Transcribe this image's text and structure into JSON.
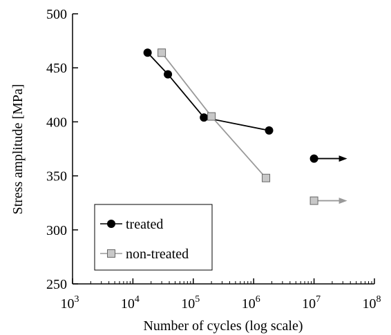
{
  "chart_data": {
    "type": "scatter",
    "xlabel": "Number of cycles (log scale)",
    "ylabel": "Stress amplitude [MPa]",
    "x_scale": "log",
    "xlim": [
      1000,
      100000000
    ],
    "ylim": [
      250,
      500
    ],
    "x_ticks": [
      {
        "value": 1000,
        "base": "10",
        "exp": "3"
      },
      {
        "value": 10000,
        "base": "10",
        "exp": "4"
      },
      {
        "value": 100000,
        "base": "10",
        "exp": "5"
      },
      {
        "value": 1000000,
        "base": "10",
        "exp": "6"
      },
      {
        "value": 10000000,
        "base": "10",
        "exp": "7"
      },
      {
        "value": 100000000,
        "base": "10",
        "exp": "8"
      }
    ],
    "y_ticks": [
      {
        "value": 250,
        "label": "250"
      },
      {
        "value": 300,
        "label": "300"
      },
      {
        "value": 350,
        "label": "350"
      },
      {
        "value": 400,
        "label": "400"
      },
      {
        "value": 450,
        "label": "450"
      },
      {
        "value": 500,
        "label": "500"
      }
    ],
    "grid": false,
    "legend_position": "bottom-left",
    "series": [
      {
        "name": "treated",
        "marker": "circle",
        "color": "#000000",
        "points": [
          [
            17500,
            464
          ],
          [
            38000,
            444
          ],
          [
            150000,
            404
          ],
          [
            1800000,
            392
          ]
        ],
        "runout": [
          [
            10000000,
            366
          ]
        ]
      },
      {
        "name": "non-treated",
        "marker": "square",
        "color": "#999999",
        "fill": "#c8c8c8",
        "points": [
          [
            30000,
            464
          ],
          [
            200000,
            405
          ],
          [
            1600000,
            348
          ]
        ],
        "runout": [
          [
            10000000,
            327
          ]
        ]
      }
    ]
  }
}
